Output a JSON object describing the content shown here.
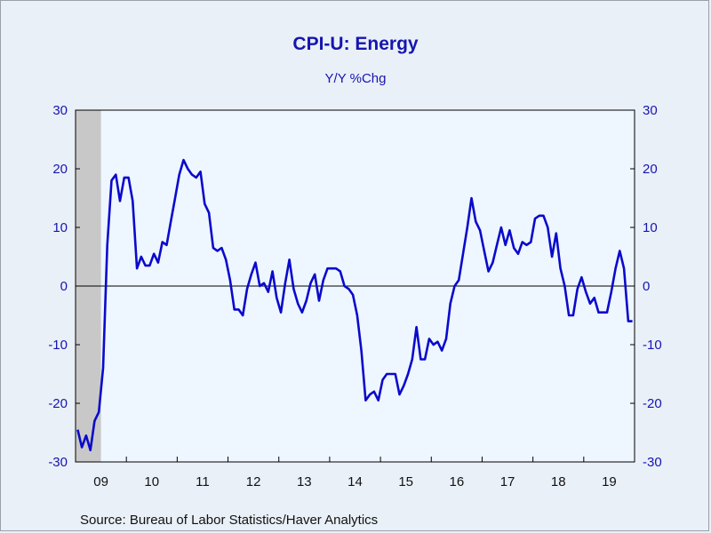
{
  "chart_data": {
    "type": "line",
    "title": "CPI-U: Energy",
    "subtitle": "Y/Y %Chg",
    "source": "Source:  Bureau of Labor Statistics/Haver Analytics",
    "ylim": [
      -30,
      30
    ],
    "yticks": [
      30,
      20,
      10,
      0,
      -10,
      -20,
      -30
    ],
    "x_start": "2009-01",
    "x_end": "2019-12",
    "x_tick_labels": [
      "09",
      "10",
      "11",
      "12",
      "13",
      "14",
      "15",
      "16",
      "17",
      "18",
      "19"
    ],
    "recession_shading": {
      "from": "2009-01",
      "to": "2009-06",
      "color": "#c8c8c8"
    },
    "zero_line": true,
    "grid": false,
    "series": [
      {
        "color": "#0a0acc",
        "x": [
          "2009-01",
          "2009-02",
          "2009-03",
          "2009-04",
          "2009-05",
          "2009-06",
          "2009-07",
          "2009-08",
          "2009-09",
          "2009-10",
          "2009-11",
          "2009-12",
          "2010-01",
          "2010-02",
          "2010-03",
          "2010-04",
          "2010-05",
          "2010-06",
          "2010-07",
          "2010-08",
          "2010-09",
          "2010-10",
          "2010-11",
          "2010-12",
          "2011-01",
          "2011-02",
          "2011-03",
          "2011-04",
          "2011-05",
          "2011-06",
          "2011-07",
          "2011-08",
          "2011-09",
          "2011-10",
          "2011-11",
          "2011-12",
          "2012-01",
          "2012-02",
          "2012-03",
          "2012-04",
          "2012-05",
          "2012-06",
          "2012-07",
          "2012-08",
          "2012-09",
          "2012-10",
          "2012-11",
          "2012-12",
          "2013-01",
          "2013-02",
          "2013-03",
          "2013-04",
          "2013-05",
          "2013-06",
          "2013-07",
          "2013-08",
          "2013-09",
          "2013-10",
          "2013-11",
          "2013-12",
          "2014-01",
          "2014-02",
          "2014-03",
          "2014-04",
          "2014-05",
          "2014-06",
          "2014-07",
          "2014-08",
          "2014-09",
          "2014-10",
          "2014-11",
          "2014-12",
          "2015-01",
          "2015-02",
          "2015-03",
          "2015-04",
          "2015-05",
          "2015-06",
          "2015-07",
          "2015-08",
          "2015-09",
          "2015-10",
          "2015-11",
          "2015-12",
          "2016-01",
          "2016-02",
          "2016-03",
          "2016-04",
          "2016-05",
          "2016-06",
          "2016-07",
          "2016-08",
          "2016-09",
          "2016-10",
          "2016-11",
          "2016-12",
          "2017-01",
          "2017-02",
          "2017-03",
          "2017-04",
          "2017-05",
          "2017-06",
          "2017-07",
          "2017-08",
          "2017-09",
          "2017-10",
          "2017-11",
          "2017-12",
          "2018-01",
          "2018-02",
          "2018-03",
          "2018-04",
          "2018-05",
          "2018-06",
          "2018-07",
          "2018-08",
          "2018-09",
          "2018-10",
          "2018-11",
          "2018-12",
          "2019-01",
          "2019-02",
          "2019-03",
          "2019-04",
          "2019-05",
          "2019-06",
          "2019-07",
          "2019-08",
          "2019-09",
          "2019-10",
          "2019-11",
          "2019-12"
        ],
        "values": [
          -24.5,
          -27.5,
          -25.5,
          -28.0,
          -23.0,
          -21.5,
          -14.0,
          7.0,
          18.0,
          19.0,
          14.5,
          18.5,
          18.5,
          14.5,
          3.0,
          5.0,
          3.5,
          3.5,
          5.5,
          4.0,
          7.5,
          7.0,
          11.0,
          15.0,
          19.0,
          21.5,
          20.0,
          19.0,
          18.5,
          19.5,
          14.0,
          12.5,
          6.5,
          6.0,
          6.5,
          4.5,
          1.0,
          -4.0,
          -4.0,
          -5.0,
          -0.5,
          2.0,
          4.0,
          0.0,
          0.5,
          -1.0,
          2.5,
          -2.0,
          -4.5,
          0.5,
          4.5,
          -0.5,
          -3.0,
          -4.5,
          -2.5,
          0.5,
          2.0,
          -2.5,
          1.0,
          3.0,
          3.0,
          3.0,
          2.5,
          0.0,
          -0.5,
          -1.5,
          -5.0,
          -11.0,
          -19.5,
          -18.5,
          -18.0,
          -19.5,
          -16.0,
          -15.0,
          -15.0,
          -15.0,
          -18.5,
          -17.0,
          -15.0,
          -12.5,
          -7.0,
          -12.5,
          -12.5,
          -9.0,
          -10.0,
          -9.5,
          -11.0,
          -9.0,
          -3.0,
          0.0,
          1.0,
          5.5,
          10.0,
          15.0,
          11.0,
          9.5,
          6.0,
          2.5,
          4.0,
          7.0,
          10.0,
          7.0,
          9.5,
          6.5,
          5.5,
          7.5,
          7.0,
          7.5,
          11.5,
          12.0,
          12.0,
          10.0,
          5.0,
          9.0,
          3.0,
          0.0,
          -5.0,
          -5.0,
          -0.5,
          1.5,
          -1.0,
          -3.0,
          -2.0,
          -4.5,
          -4.5,
          -4.5,
          -1.0,
          3.0,
          6.0,
          3.0,
          -6.0,
          -6.0
        ]
      }
    ]
  }
}
